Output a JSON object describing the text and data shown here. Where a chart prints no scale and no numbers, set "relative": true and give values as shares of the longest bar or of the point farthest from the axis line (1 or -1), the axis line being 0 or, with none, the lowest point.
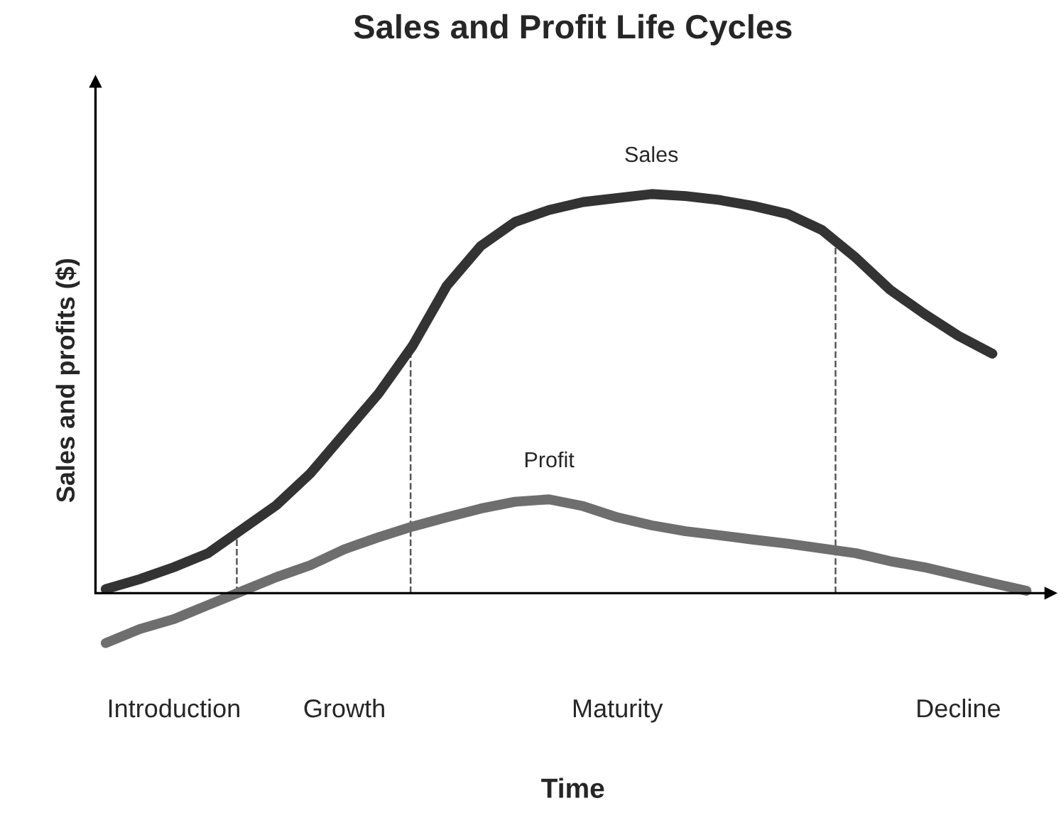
{
  "chart_data": {
    "type": "line",
    "title": "Sales and Profit Life Cycles",
    "xlabel": "Time",
    "ylabel": "Sales and profits ($)",
    "relative": true,
    "categories": [
      null,
      null,
      "Introduction",
      null,
      null,
      null,
      null,
      "Growth",
      null,
      null,
      null,
      null,
      null,
      null,
      null,
      "Maturity",
      null,
      null,
      null,
      null,
      null,
      null,
      null,
      null,
      null,
      "Decline",
      null,
      null
    ],
    "series": [
      {
        "name": "Sales",
        "color": "#333333",
        "values": [
          0.01,
          0.035,
          0.065,
          0.1,
          0.16,
          0.22,
          0.3,
          0.4,
          0.5,
          0.62,
          0.77,
          0.87,
          0.93,
          0.96,
          0.98,
          0.99,
          1.0,
          0.995,
          0.985,
          0.97,
          0.95,
          0.91,
          0.84,
          0.76,
          0.7,
          0.645,
          0.6,
          null
        ]
      },
      {
        "name": "Profit",
        "color": "#6e6e6e",
        "values": [
          -0.125,
          -0.09,
          -0.065,
          -0.03,
          0.005,
          0.04,
          0.07,
          0.11,
          0.14,
          0.167,
          0.19,
          0.212,
          0.229,
          0.235,
          0.218,
          0.19,
          0.17,
          0.155,
          0.145,
          0.134,
          0.124,
          0.112,
          0.1,
          0.08,
          0.065,
          0.045,
          0.025,
          0.006
        ]
      }
    ],
    "legend": false,
    "grid": false
  }
}
